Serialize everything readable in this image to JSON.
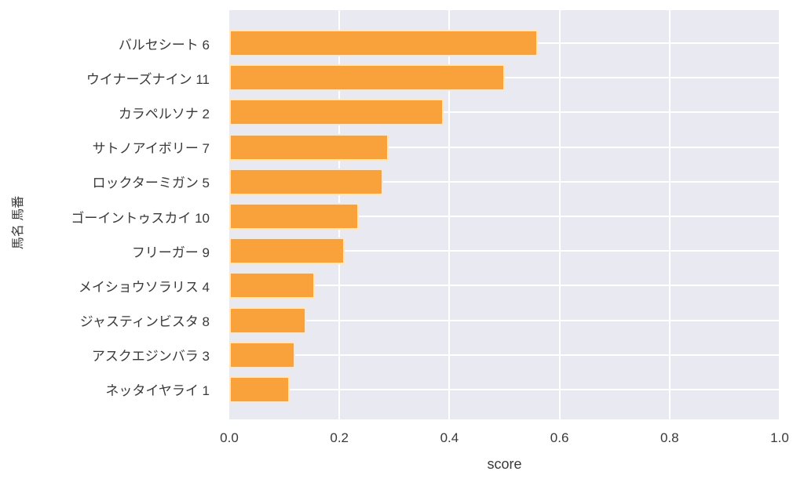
{
  "chart_data": {
    "type": "bar",
    "orientation": "horizontal",
    "title": "",
    "xlabel": "score",
    "ylabel": "馬名 馬番",
    "categories": [
      "バルセシート 6",
      "ウイナーズナイン 11",
      "カラペルソナ 2",
      "サトノアイボリー 7",
      "ロックターミガン 5",
      "ゴーイントゥスカイ 10",
      "フリーガー 9",
      "メイショウソラリス 4",
      "ジャスティンビスタ 8",
      "アスクエジンバラ 3",
      "ネッタイヤライ 1"
    ],
    "values": [
      0.56,
      0.5,
      0.39,
      0.29,
      0.28,
      0.235,
      0.21,
      0.155,
      0.14,
      0.12,
      0.11
    ],
    "xlim": [
      0.0,
      1.0
    ],
    "x_tick_labels": [
      "0.0",
      "0.2",
      "0.4",
      "0.6",
      "0.8",
      "1.0"
    ],
    "x_tick_values": [
      0.0,
      0.2,
      0.4,
      0.6,
      0.8,
      1.0
    ],
    "grid": true,
    "legend": false,
    "bar_color": "#F9A23C",
    "bar_edge_color": "#FFF7EC",
    "plot_background": "#E9E9F1",
    "grid_color": "#FFFFFF",
    "text_color": "#3A3A3A"
  }
}
